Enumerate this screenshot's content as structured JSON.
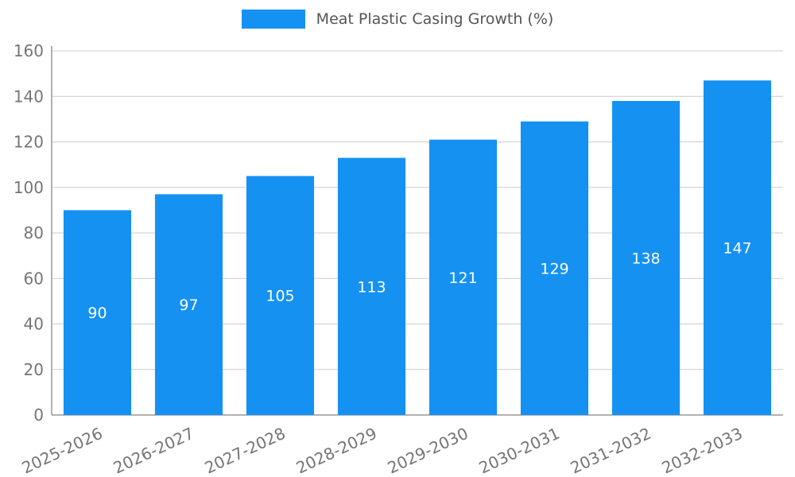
{
  "legend": {
    "label": "Meat Plastic Casing Growth (%)"
  },
  "chart_data": {
    "type": "bar",
    "title": "",
    "categories": [
      "2025-2026",
      "2026-2027",
      "2027-2028",
      "2028-2029",
      "2029-2030",
      "2030-2031",
      "2031-2032",
      "2032-2033"
    ],
    "values": [
      90,
      97,
      105,
      113,
      121,
      129,
      138,
      147
    ],
    "legend_entries": [
      "Meat Plastic Casing Growth (%)"
    ],
    "legend_position": "top-center",
    "xlabel": "",
    "ylabel": "",
    "ylim": [
      0,
      160
    ],
    "ytick_step": 20,
    "ytick_labels": [
      "0",
      "20",
      "40",
      "60",
      "80",
      "100",
      "120",
      "140",
      "160"
    ],
    "grid": true,
    "value_label_position": "inside-center",
    "colors": {
      "bar": "#1591F2",
      "value_label": "#ffffff",
      "tick_label": "#757575",
      "grid_line": "#cccccc",
      "axis_line": "#999999",
      "legend_text": "#555555",
      "background": "#ffffff"
    }
  }
}
